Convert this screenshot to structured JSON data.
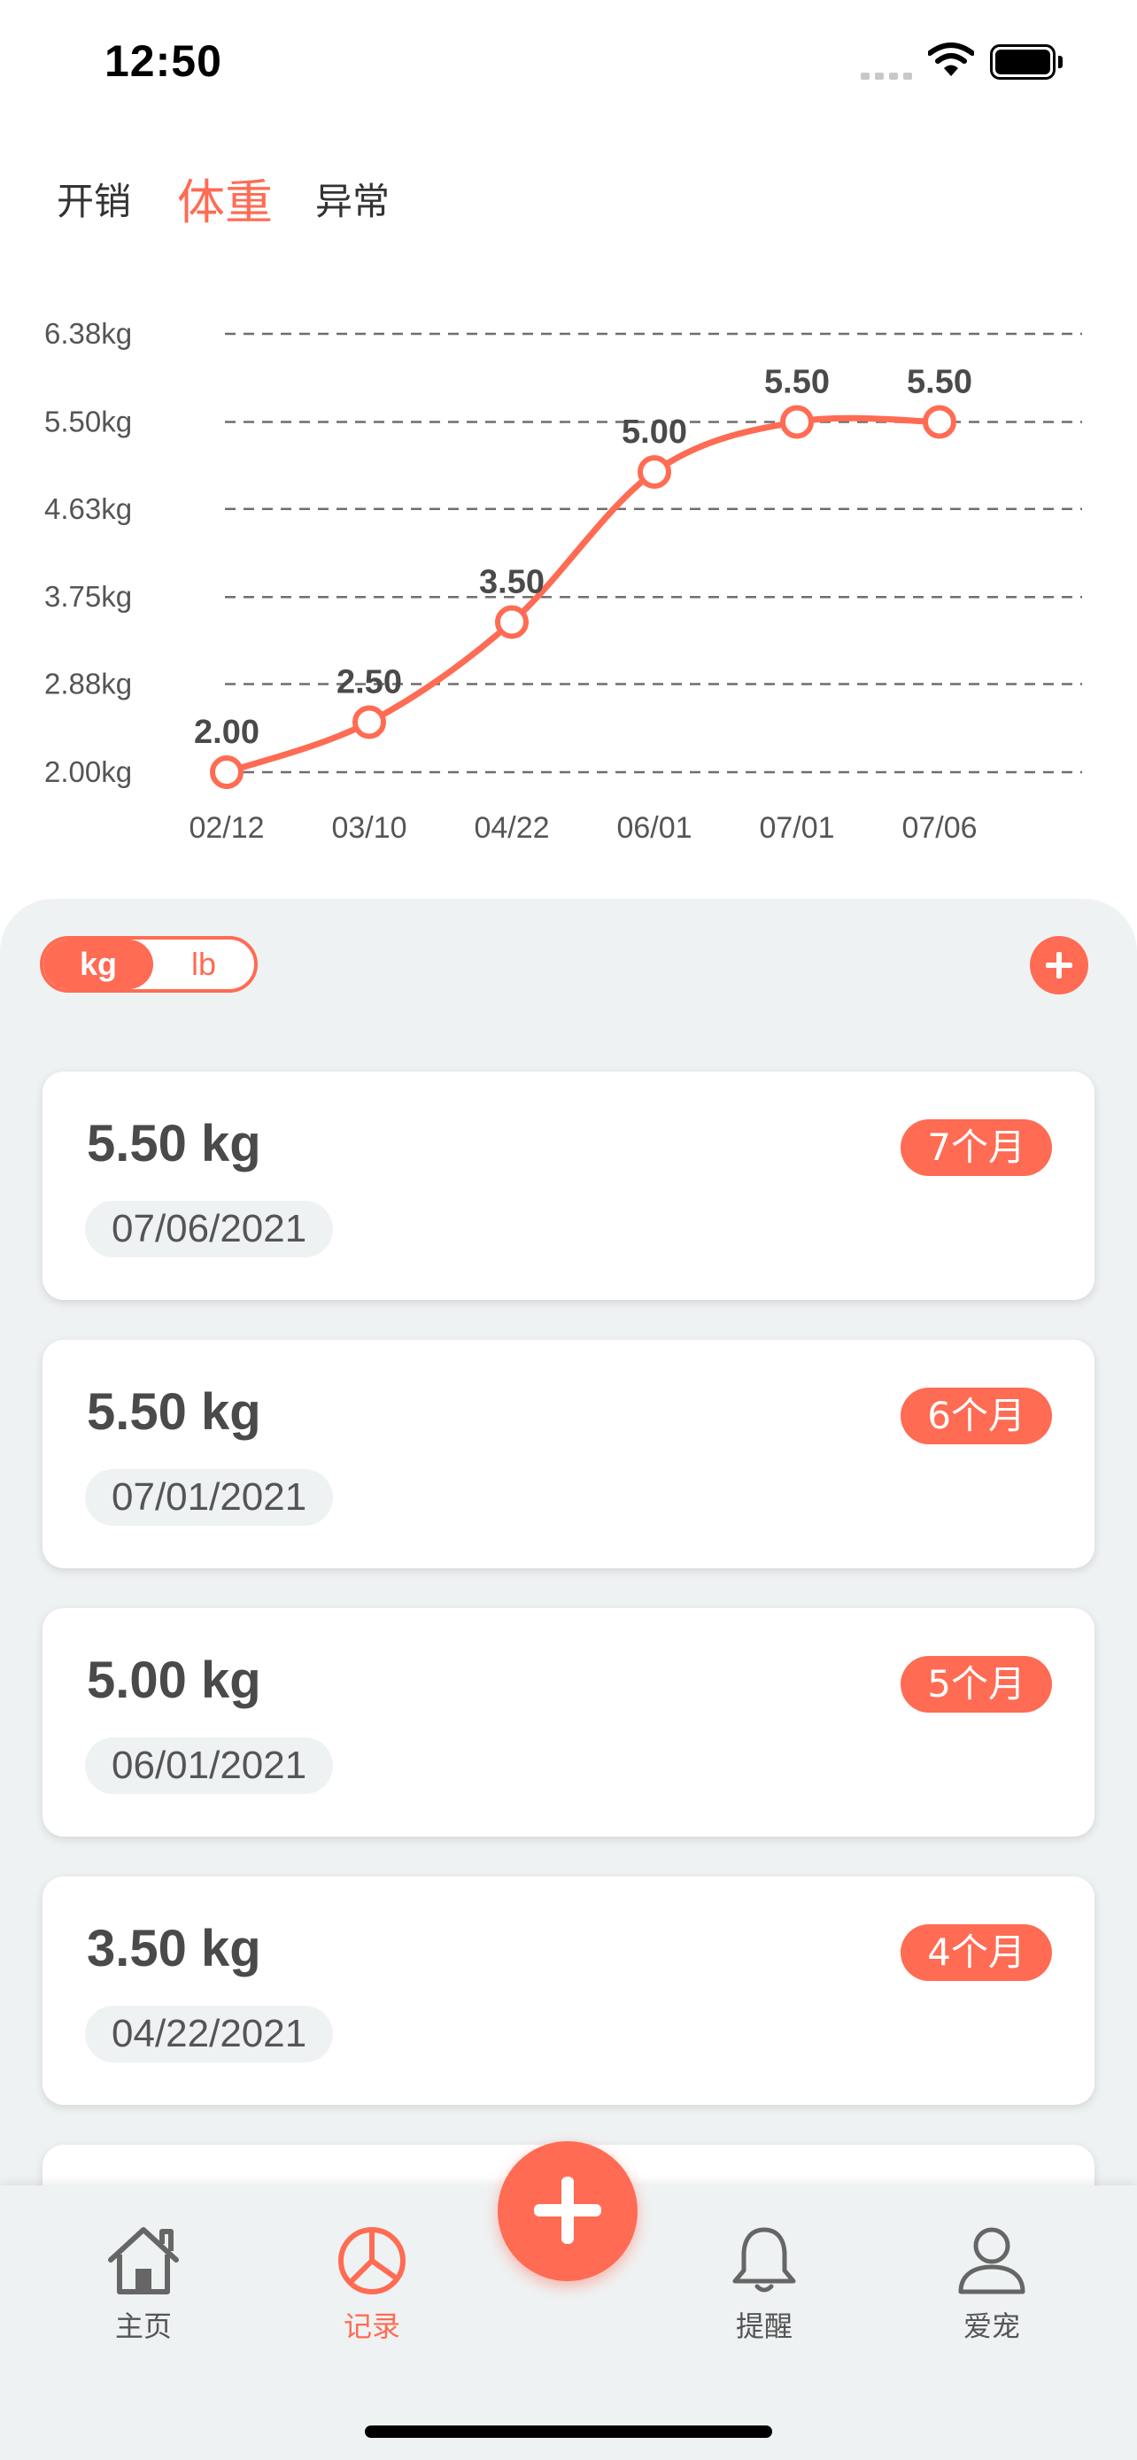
{
  "status_bar": {
    "time": "12:50"
  },
  "tabs": [
    {
      "label": "开销",
      "active": false
    },
    {
      "label": "体重",
      "active": true
    },
    {
      "label": "异常",
      "active": false
    }
  ],
  "chart_data": {
    "type": "line",
    "categories": [
      "02/12",
      "03/10",
      "04/22",
      "06/01",
      "07/01",
      "07/06"
    ],
    "values": [
      2.0,
      2.5,
      3.5,
      5.0,
      5.5,
      5.5
    ],
    "data_labels": [
      "2.00",
      "2.50",
      "3.50",
      "5.00",
      "5.50",
      "5.50"
    ],
    "y_ticks": [
      {
        "value": 2.0,
        "label": "2.00kg"
      },
      {
        "value": 2.88,
        "label": "2.88kg"
      },
      {
        "value": 3.75,
        "label": "3.75kg"
      },
      {
        "value": 4.63,
        "label": "4.63kg"
      },
      {
        "value": 5.5,
        "label": "5.50kg"
      },
      {
        "value": 6.38,
        "label": "6.38kg"
      }
    ],
    "ylim": [
      2.0,
      6.38
    ],
    "grid": "dashed horizontal",
    "color": "#ff6b53"
  },
  "unit_toggle": {
    "kg": "kg",
    "lb": "lb",
    "selected": "kg"
  },
  "records": [
    {
      "weight": "5.50 kg",
      "date": "07/06/2021",
      "age": "7个月"
    },
    {
      "weight": "5.50 kg",
      "date": "07/01/2021",
      "age": "6个月"
    },
    {
      "weight": "5.00 kg",
      "date": "06/01/2021",
      "age": "5个月"
    },
    {
      "weight": "3.50 kg",
      "date": "04/22/2021",
      "age": "4个月"
    }
  ],
  "nav": [
    {
      "label": "主页",
      "icon": "home-icon",
      "active": false
    },
    {
      "label": "记录",
      "icon": "pie-chart-icon",
      "active": true
    },
    {
      "label": "提醒",
      "icon": "bell-icon",
      "active": false
    },
    {
      "label": "爱宠",
      "icon": "user-icon",
      "active": false
    }
  ],
  "colors": {
    "accent": "#ff6b53",
    "panel_bg": "#eff2f3",
    "text": "#555555"
  }
}
